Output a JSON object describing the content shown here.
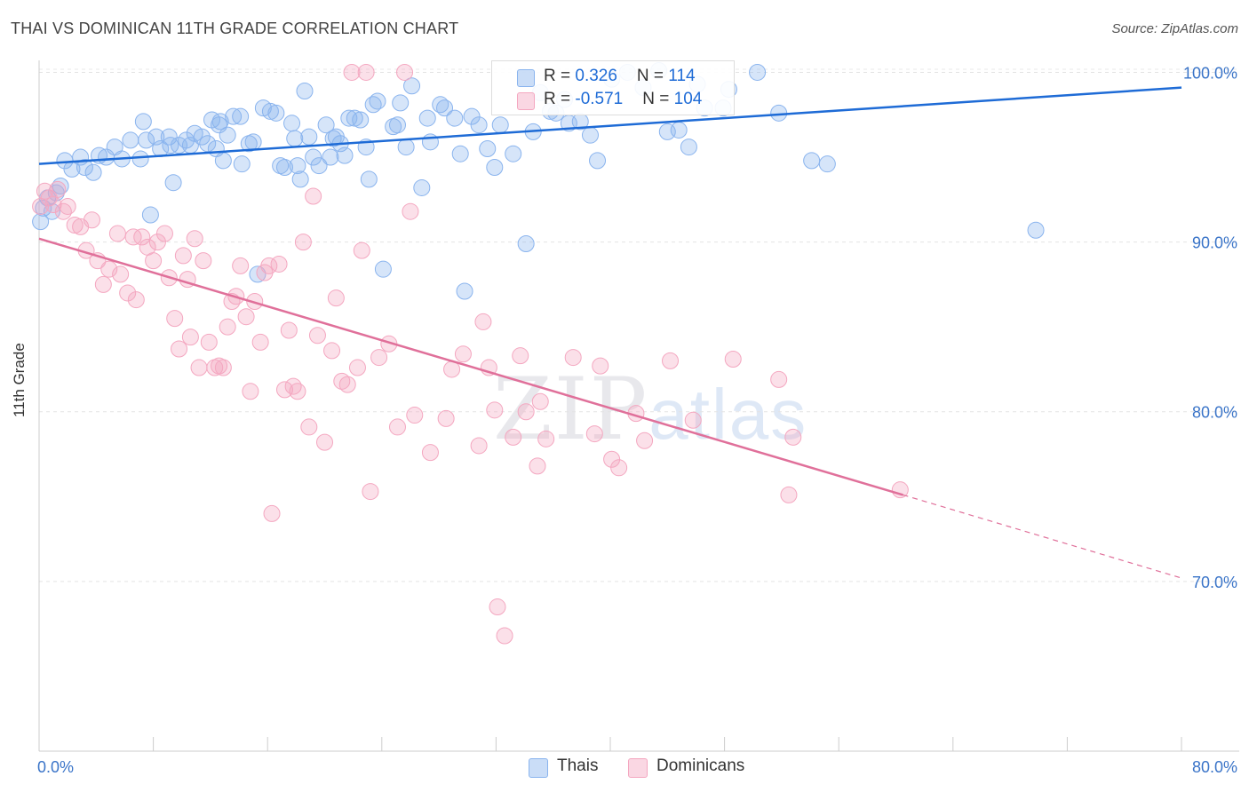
{
  "title": "THAI VS DOMINICAN 11TH GRADE CORRELATION CHART",
  "source": "Source: ZipAtlas.com",
  "watermark": {
    "zip": "ZIP",
    "atlas": "atlas"
  },
  "legend": {
    "rows": [
      {
        "r_label": "R = ",
        "r_value": "0.326",
        "n_label": "N = ",
        "n_value": "114",
        "color": "#8ab4ee"
      },
      {
        "r_label": "R = ",
        "r_value": "-0.571",
        "n_label": "N = ",
        "n_value": "104",
        "color": "#f4a7c0"
      }
    ]
  },
  "bottom_legend": [
    {
      "label": "Thais",
      "color": "#8ab4ee"
    },
    {
      "label": "Dominicans",
      "color": "#f4a7c0"
    }
  ],
  "chart_data": {
    "type": "scatter",
    "xlabel": "",
    "ylabel": "11th Grade",
    "xlim": [
      0,
      80
    ],
    "ylim": [
      60,
      100.6
    ],
    "x_tick_labels": [
      {
        "value": 0,
        "label": "0.0%"
      },
      {
        "value": 80,
        "label": "80.0%"
      }
    ],
    "y_tick_labels": [
      {
        "value": 100,
        "label": "100.0%"
      },
      {
        "value": 90,
        "label": "90.0%"
      },
      {
        "value": 80,
        "label": "80.0%"
      },
      {
        "value": 70,
        "label": "70.0%"
      }
    ],
    "grid": true,
    "series": [
      {
        "name": "Thais",
        "color": "#8ab4ee",
        "line_color": "#1e6bd6",
        "trend": {
          "x": [
            0,
            80
          ],
          "y": [
            94.6,
            99.1
          ]
        },
        "points": [
          [
            0.1,
            91.2
          ],
          [
            0.3,
            92.0
          ],
          [
            0.6,
            92.6
          ],
          [
            0.9,
            91.8
          ],
          [
            1.2,
            92.9
          ],
          [
            1.5,
            93.3
          ],
          [
            1.8,
            94.8
          ],
          [
            2.3,
            94.3
          ],
          [
            2.9,
            95.0
          ],
          [
            3.2,
            94.4
          ],
          [
            3.8,
            94.1
          ],
          [
            4.2,
            95.1
          ],
          [
            4.7,
            95.0
          ],
          [
            5.3,
            95.6
          ],
          [
            5.8,
            94.9
          ],
          [
            6.4,
            96.0
          ],
          [
            7.1,
            94.9
          ],
          [
            7.3,
            97.1
          ],
          [
            7.8,
            91.6
          ],
          [
            8.2,
            96.2
          ],
          [
            8.5,
            95.5
          ],
          [
            9.1,
            96.2
          ],
          [
            9.2,
            95.7
          ],
          [
            9.4,
            93.5
          ],
          [
            9.8,
            95.7
          ],
          [
            10.3,
            96.0
          ],
          [
            10.6,
            95.7
          ],
          [
            10.9,
            96.4
          ],
          [
            11.4,
            96.2
          ],
          [
            11.8,
            95.8
          ],
          [
            12.1,
            97.2
          ],
          [
            12.4,
            95.5
          ],
          [
            12.6,
            96.9
          ],
          [
            12.9,
            94.8
          ],
          [
            13.2,
            96.3
          ],
          [
            13.6,
            97.4
          ],
          [
            14.1,
            97.4
          ],
          [
            14.2,
            94.6
          ],
          [
            14.7,
            95.8
          ],
          [
            15.0,
            95.9
          ],
          [
            15.3,
            88.1
          ],
          [
            15.7,
            97.9
          ],
          [
            16.2,
            97.7
          ],
          [
            16.6,
            97.6
          ],
          [
            16.9,
            94.5
          ],
          [
            17.2,
            94.4
          ],
          [
            17.7,
            97.0
          ],
          [
            17.9,
            96.1
          ],
          [
            18.3,
            93.7
          ],
          [
            18.6,
            98.9
          ],
          [
            18.9,
            96.2
          ],
          [
            19.2,
            95.0
          ],
          [
            19.6,
            94.5
          ],
          [
            20.1,
            96.9
          ],
          [
            20.4,
            95.0
          ],
          [
            20.8,
            96.2
          ],
          [
            21.1,
            95.8
          ],
          [
            21.4,
            95.1
          ],
          [
            21.7,
            97.3
          ],
          [
            22.1,
            97.3
          ],
          [
            22.5,
            97.2
          ],
          [
            22.9,
            95.6
          ],
          [
            23.1,
            93.7
          ],
          [
            23.4,
            98.1
          ],
          [
            23.7,
            98.3
          ],
          [
            24.1,
            88.4
          ],
          [
            24.8,
            96.8
          ],
          [
            25.1,
            96.9
          ],
          [
            25.3,
            98.2
          ],
          [
            25.7,
            95.6
          ],
          [
            26.1,
            99.2
          ],
          [
            26.8,
            93.2
          ],
          [
            27.2,
            97.3
          ],
          [
            27.4,
            95.9
          ],
          [
            28.1,
            98.1
          ],
          [
            28.4,
            97.9
          ],
          [
            29.1,
            97.3
          ],
          [
            29.5,
            95.2
          ],
          [
            29.8,
            87.1
          ],
          [
            30.3,
            97.4
          ],
          [
            30.8,
            96.9
          ],
          [
            31.4,
            95.5
          ],
          [
            31.9,
            94.4
          ],
          [
            32.3,
            96.9
          ],
          [
            33.2,
            95.2
          ],
          [
            34.1,
            89.9
          ],
          [
            34.6,
            96.5
          ],
          [
            35.1,
            98.8
          ],
          [
            35.8,
            97.7
          ],
          [
            36.2,
            97.6
          ],
          [
            37.1,
            97.0
          ],
          [
            37.9,
            97.1
          ],
          [
            38.6,
            96.3
          ],
          [
            39.1,
            94.8
          ],
          [
            40.1,
            99.6
          ],
          [
            41.2,
            100.0
          ],
          [
            42.3,
            99.1
          ],
          [
            43.4,
            100.1
          ],
          [
            44.0,
            96.5
          ],
          [
            44.8,
            96.6
          ],
          [
            45.5,
            95.6
          ],
          [
            46.1,
            99.3
          ],
          [
            47.9,
            97.9
          ],
          [
            48.3,
            99.0
          ],
          [
            50.3,
            100.0
          ],
          [
            51.8,
            97.6
          ],
          [
            54.1,
            94.8
          ],
          [
            55.2,
            94.6
          ],
          [
            69.8,
            90.7
          ],
          [
            12.7,
            97.1
          ],
          [
            20.6,
            96.1
          ],
          [
            36.8,
            98.4
          ],
          [
            46.6,
            97.9
          ],
          [
            7.5,
            96.0
          ],
          [
            18.1,
            94.5
          ]
        ]
      },
      {
        "name": "Dominicans",
        "color": "#f4a7c0",
        "line_color": "#e0709a",
        "trend": {
          "x": [
            0,
            60.5
          ],
          "y": [
            90.2,
            75.1
          ]
        },
        "trend_dashed": {
          "x": [
            60.5,
            80
          ],
          "y": [
            75.1,
            70.2
          ]
        },
        "points": [
          [
            0.1,
            92.1
          ],
          [
            0.4,
            93.0
          ],
          [
            0.7,
            92.6
          ],
          [
            1.0,
            92.2
          ],
          [
            1.3,
            93.1
          ],
          [
            1.7,
            91.8
          ],
          [
            2.0,
            92.1
          ],
          [
            2.5,
            91.0
          ],
          [
            2.9,
            90.9
          ],
          [
            3.3,
            89.5
          ],
          [
            3.7,
            91.3
          ],
          [
            4.1,
            88.9
          ],
          [
            4.5,
            87.5
          ],
          [
            4.9,
            88.4
          ],
          [
            5.5,
            90.5
          ],
          [
            5.7,
            88.1
          ],
          [
            6.2,
            87.0
          ],
          [
            6.6,
            90.3
          ],
          [
            6.8,
            86.6
          ],
          [
            7.2,
            90.3
          ],
          [
            7.6,
            89.7
          ],
          [
            8.0,
            88.9
          ],
          [
            8.3,
            90.0
          ],
          [
            8.8,
            90.5
          ],
          [
            9.1,
            87.9
          ],
          [
            9.5,
            85.5
          ],
          [
            9.8,
            83.7
          ],
          [
            10.1,
            89.2
          ],
          [
            10.4,
            87.8
          ],
          [
            10.6,
            84.4
          ],
          [
            10.9,
            90.2
          ],
          [
            11.2,
            82.6
          ],
          [
            11.5,
            88.9
          ],
          [
            11.9,
            84.1
          ],
          [
            12.3,
            82.6
          ],
          [
            12.6,
            82.7
          ],
          [
            12.9,
            82.6
          ],
          [
            13.2,
            85.0
          ],
          [
            13.5,
            86.5
          ],
          [
            13.8,
            86.8
          ],
          [
            14.1,
            88.6
          ],
          [
            14.5,
            85.6
          ],
          [
            14.8,
            81.2
          ],
          [
            15.1,
            86.5
          ],
          [
            15.5,
            84.1
          ],
          [
            15.8,
            88.2
          ],
          [
            16.1,
            88.6
          ],
          [
            16.3,
            74.0
          ],
          [
            16.8,
            88.7
          ],
          [
            17.2,
            81.3
          ],
          [
            17.5,
            84.8
          ],
          [
            17.8,
            81.5
          ],
          [
            18.1,
            81.2
          ],
          [
            18.5,
            90.0
          ],
          [
            18.9,
            79.1
          ],
          [
            19.2,
            92.7
          ],
          [
            19.5,
            84.5
          ],
          [
            20.0,
            78.2
          ],
          [
            20.5,
            83.6
          ],
          [
            20.8,
            86.7
          ],
          [
            21.2,
            81.8
          ],
          [
            21.6,
            81.6
          ],
          [
            21.9,
            100.0
          ],
          [
            22.3,
            82.6
          ],
          [
            22.6,
            89.5
          ],
          [
            22.9,
            100.0
          ],
          [
            23.2,
            75.3
          ],
          [
            23.8,
            83.2
          ],
          [
            24.5,
            84.0
          ],
          [
            25.1,
            79.1
          ],
          [
            25.6,
            100.0
          ],
          [
            26.0,
            91.8
          ],
          [
            26.3,
            79.8
          ],
          [
            27.4,
            77.6
          ],
          [
            28.5,
            79.6
          ],
          [
            28.9,
            82.5
          ],
          [
            29.7,
            83.4
          ],
          [
            30.8,
            78.0
          ],
          [
            31.1,
            85.3
          ],
          [
            31.5,
            82.6
          ],
          [
            32.1,
            68.5
          ],
          [
            32.6,
            66.8
          ],
          [
            33.2,
            78.5
          ],
          [
            33.7,
            83.3
          ],
          [
            34.1,
            80.0
          ],
          [
            34.9,
            76.8
          ],
          [
            35.1,
            80.6
          ],
          [
            35.5,
            78.4
          ],
          [
            37.4,
            83.2
          ],
          [
            38.9,
            78.7
          ],
          [
            39.3,
            82.7
          ],
          [
            40.1,
            77.2
          ],
          [
            40.6,
            76.7
          ],
          [
            41.8,
            79.9
          ],
          [
            42.4,
            78.3
          ],
          [
            44.2,
            83.0
          ],
          [
            45.8,
            79.5
          ],
          [
            48.6,
            83.1
          ],
          [
            51.8,
            81.9
          ],
          [
            52.5,
            75.1
          ],
          [
            52.8,
            78.5
          ],
          [
            60.3,
            75.4
          ],
          [
            31.9,
            80.1
          ]
        ]
      }
    ]
  }
}
